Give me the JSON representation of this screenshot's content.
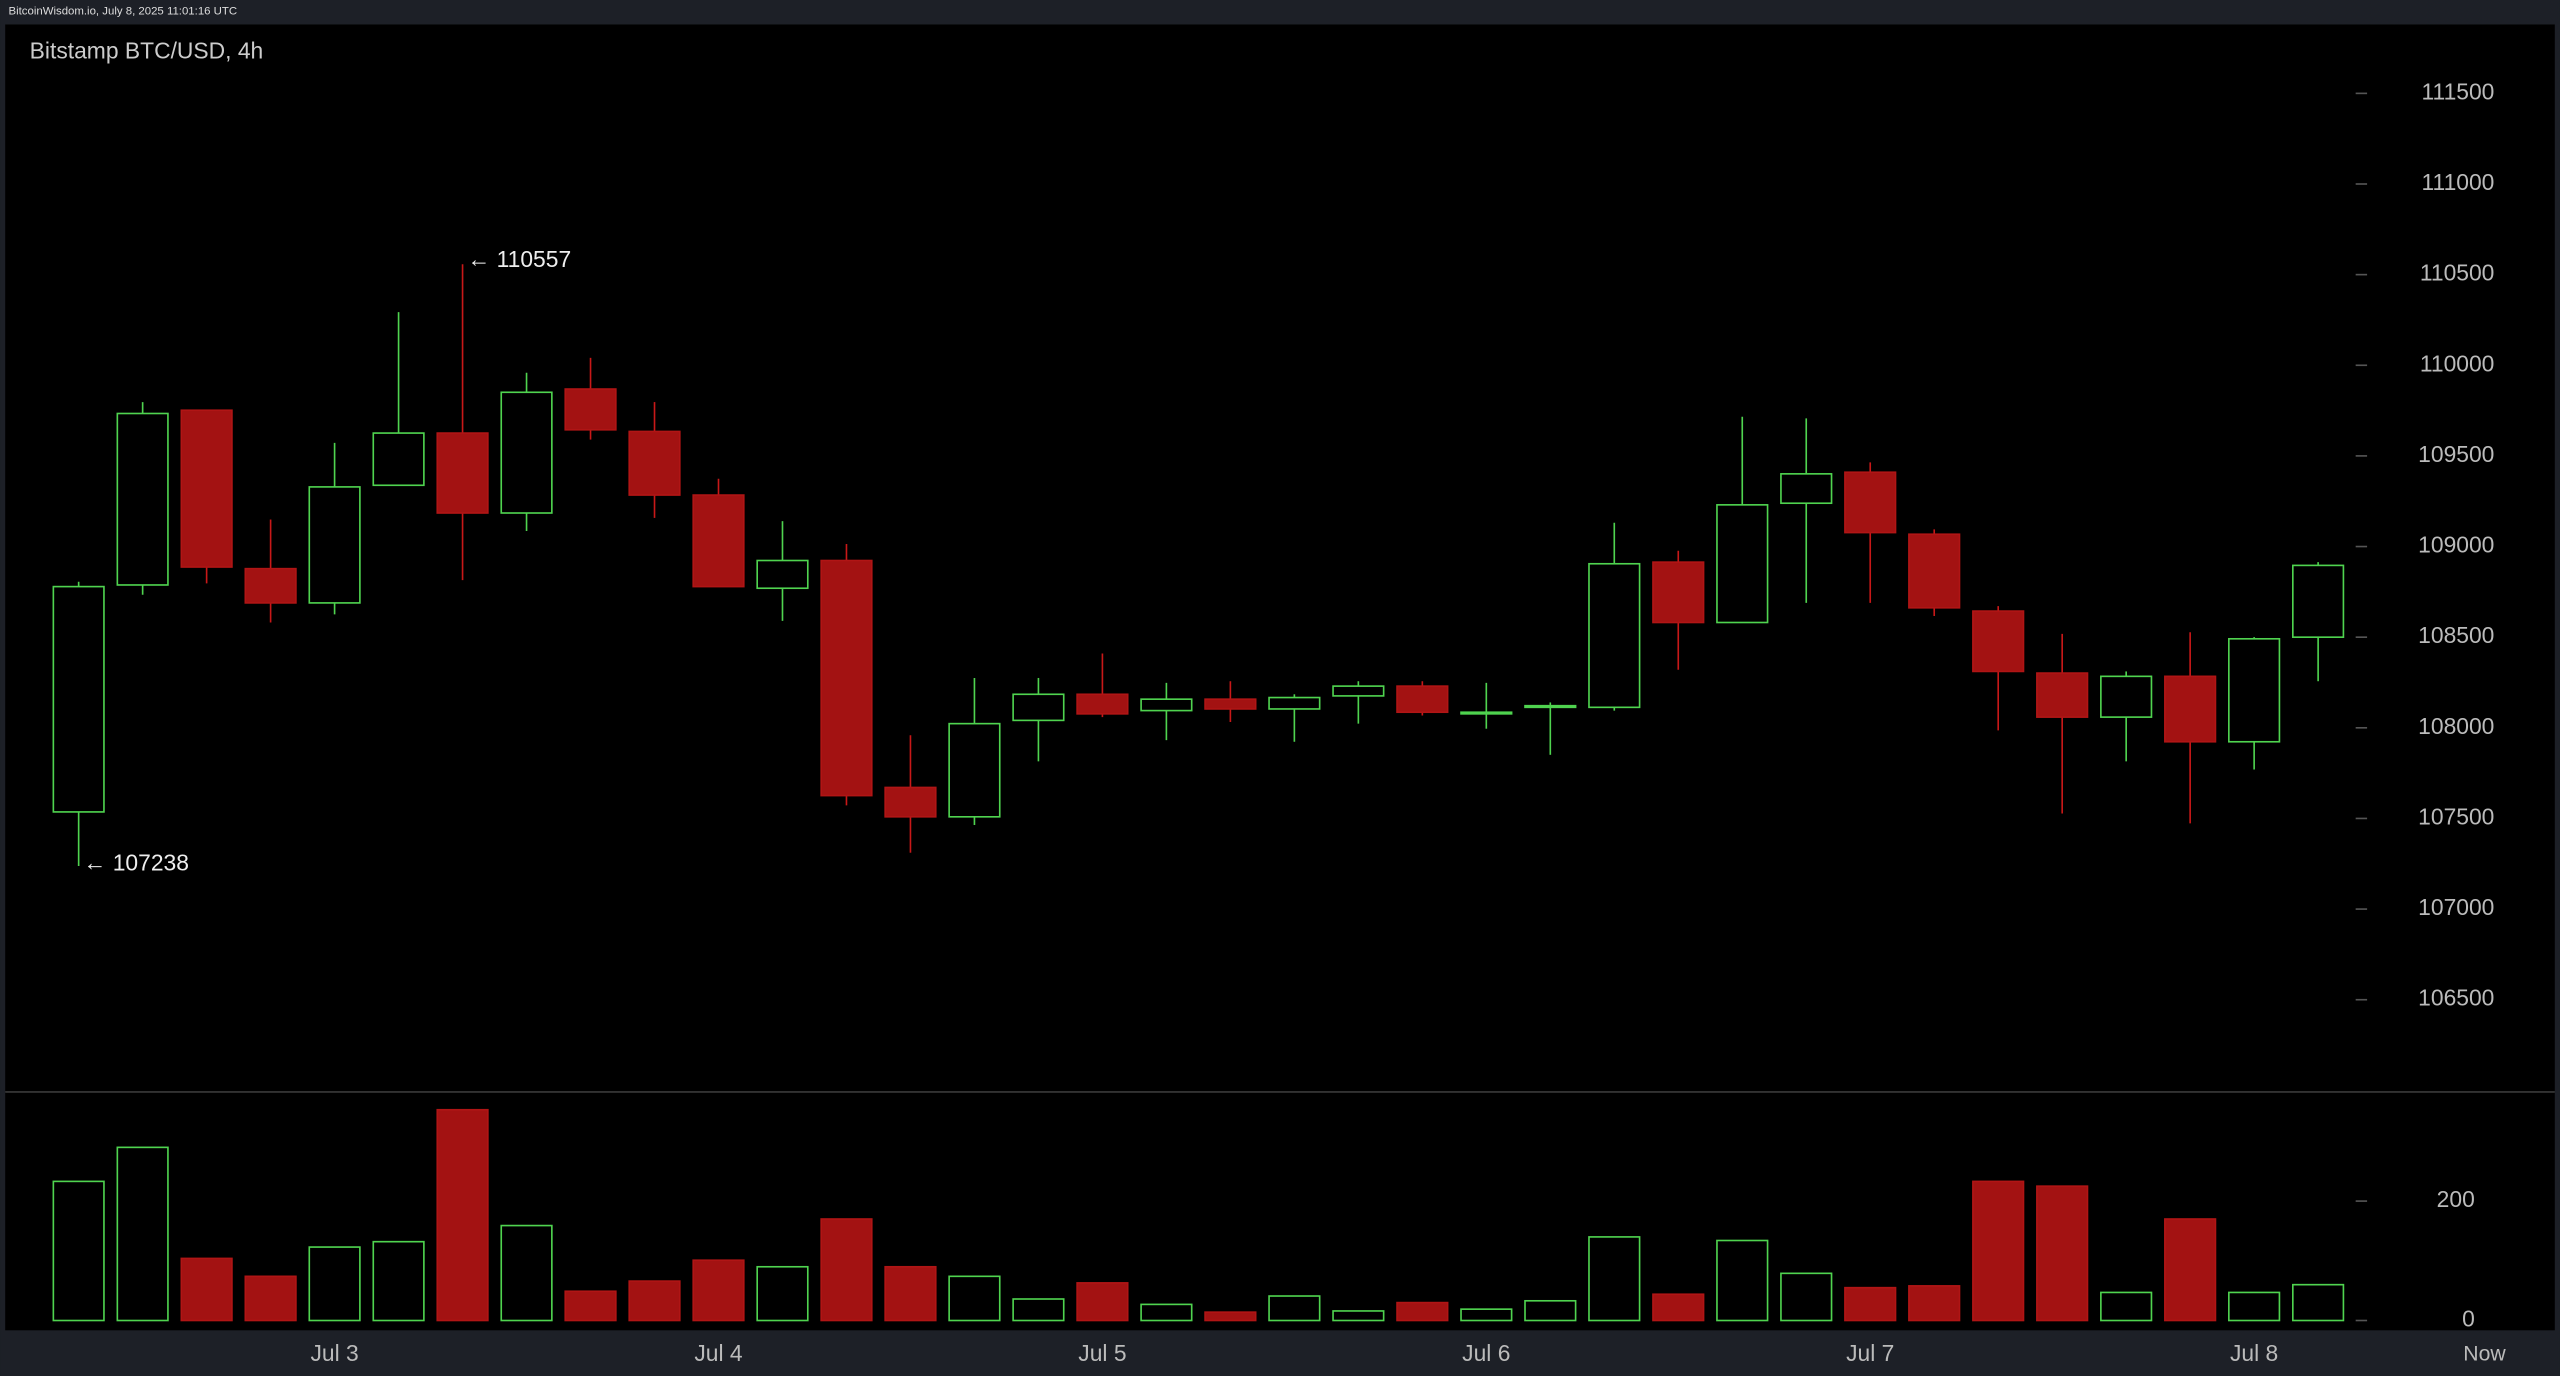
{
  "header": {
    "source": "BitcoinWisdom.io, July 8, 2025 11:01:16 UTC"
  },
  "chart_data": {
    "type": "candlestick",
    "title": "Bitstamp BTC/USD, 4h",
    "categories": [
      null,
      null,
      null,
      null,
      "Jul 3",
      null,
      null,
      null,
      null,
      null,
      "Jul 4",
      null,
      null,
      null,
      null,
      null,
      "Jul 5",
      null,
      null,
      null,
      null,
      null,
      "Jul 6",
      null,
      null,
      null,
      null,
      null,
      "Jul 7",
      null,
      null,
      null,
      null,
      null,
      "Jul 8",
      null
    ],
    "now_label": "Now",
    "up_color": "#4fd34f",
    "down_color": "#a31212",
    "open": [
      107536,
      108788,
      109752,
      108878,
      108689,
      109338,
      109626,
      109185,
      109869,
      109635,
      109284,
      108770,
      108923,
      107671,
      107509,
      108041,
      108185,
      108095,
      108158,
      108104,
      108176,
      108230,
      108077,
      108113,
      108113,
      108914,
      108581,
      109239,
      109410,
      109068,
      108644,
      108302,
      108059,
      108284,
      107923,
      108500
    ],
    "high": [
      108806,
      109797,
      109752,
      109149,
      109572,
      110293,
      110557,
      109959,
      110041,
      109797,
      109374,
      109140,
      109014,
      107959,
      108275,
      108275,
      108410,
      108248,
      108257,
      108185,
      108257,
      108257,
      108248,
      108140,
      109131,
      108977,
      109716,
      109707,
      109464,
      109095,
      108671,
      108518,
      108311,
      108527,
      108500,
      108914
    ],
    "low": [
      107238,
      108734,
      108797,
      108581,
      108626,
      109338,
      108815,
      109086,
      109590,
      109158,
      108779,
      108590,
      107572,
      107311,
      107464,
      107815,
      108059,
      107932,
      108032,
      107923,
      108023,
      108068,
      107995,
      107851,
      108095,
      108320,
      108581,
      108689,
      108689,
      108617,
      107986,
      107527,
      107815,
      107473,
      107770,
      108257
    ],
    "close": [
      108779,
      109734,
      108887,
      108689,
      109329,
      109626,
      109185,
      109851,
      109644,
      109284,
      108779,
      108923,
      107626,
      107509,
      108023,
      108185,
      108077,
      108158,
      108104,
      108167,
      108230,
      108086,
      108086,
      108122,
      108905,
      108581,
      109230,
      109401,
      109077,
      108662,
      108311,
      108059,
      108284,
      107923,
      108491,
      108896
    ],
    "volume": [
      233,
      290,
      104,
      74,
      123,
      132,
      353,
      159,
      49,
      66,
      101,
      90,
      170,
      90,
      74,
      36,
      63,
      27,
      14,
      41,
      16,
      30,
      19,
      33,
      140,
      44,
      134,
      79,
      55,
      58,
      233,
      225,
      47,
      170,
      47,
      60
    ],
    "ylim": [
      106000,
      111880
    ],
    "yticks": [
      106500,
      107000,
      107500,
      108000,
      108500,
      109000,
      109500,
      110000,
      110500,
      111000,
      111500
    ],
    "volume_ylim": [
      0,
      380
    ],
    "volume_yticks": [
      0,
      200
    ],
    "annotations": [
      {
        "text": "← 110557",
        "value": 110557
      },
      {
        "text": "← 107238",
        "value": 107238
      }
    ]
  }
}
